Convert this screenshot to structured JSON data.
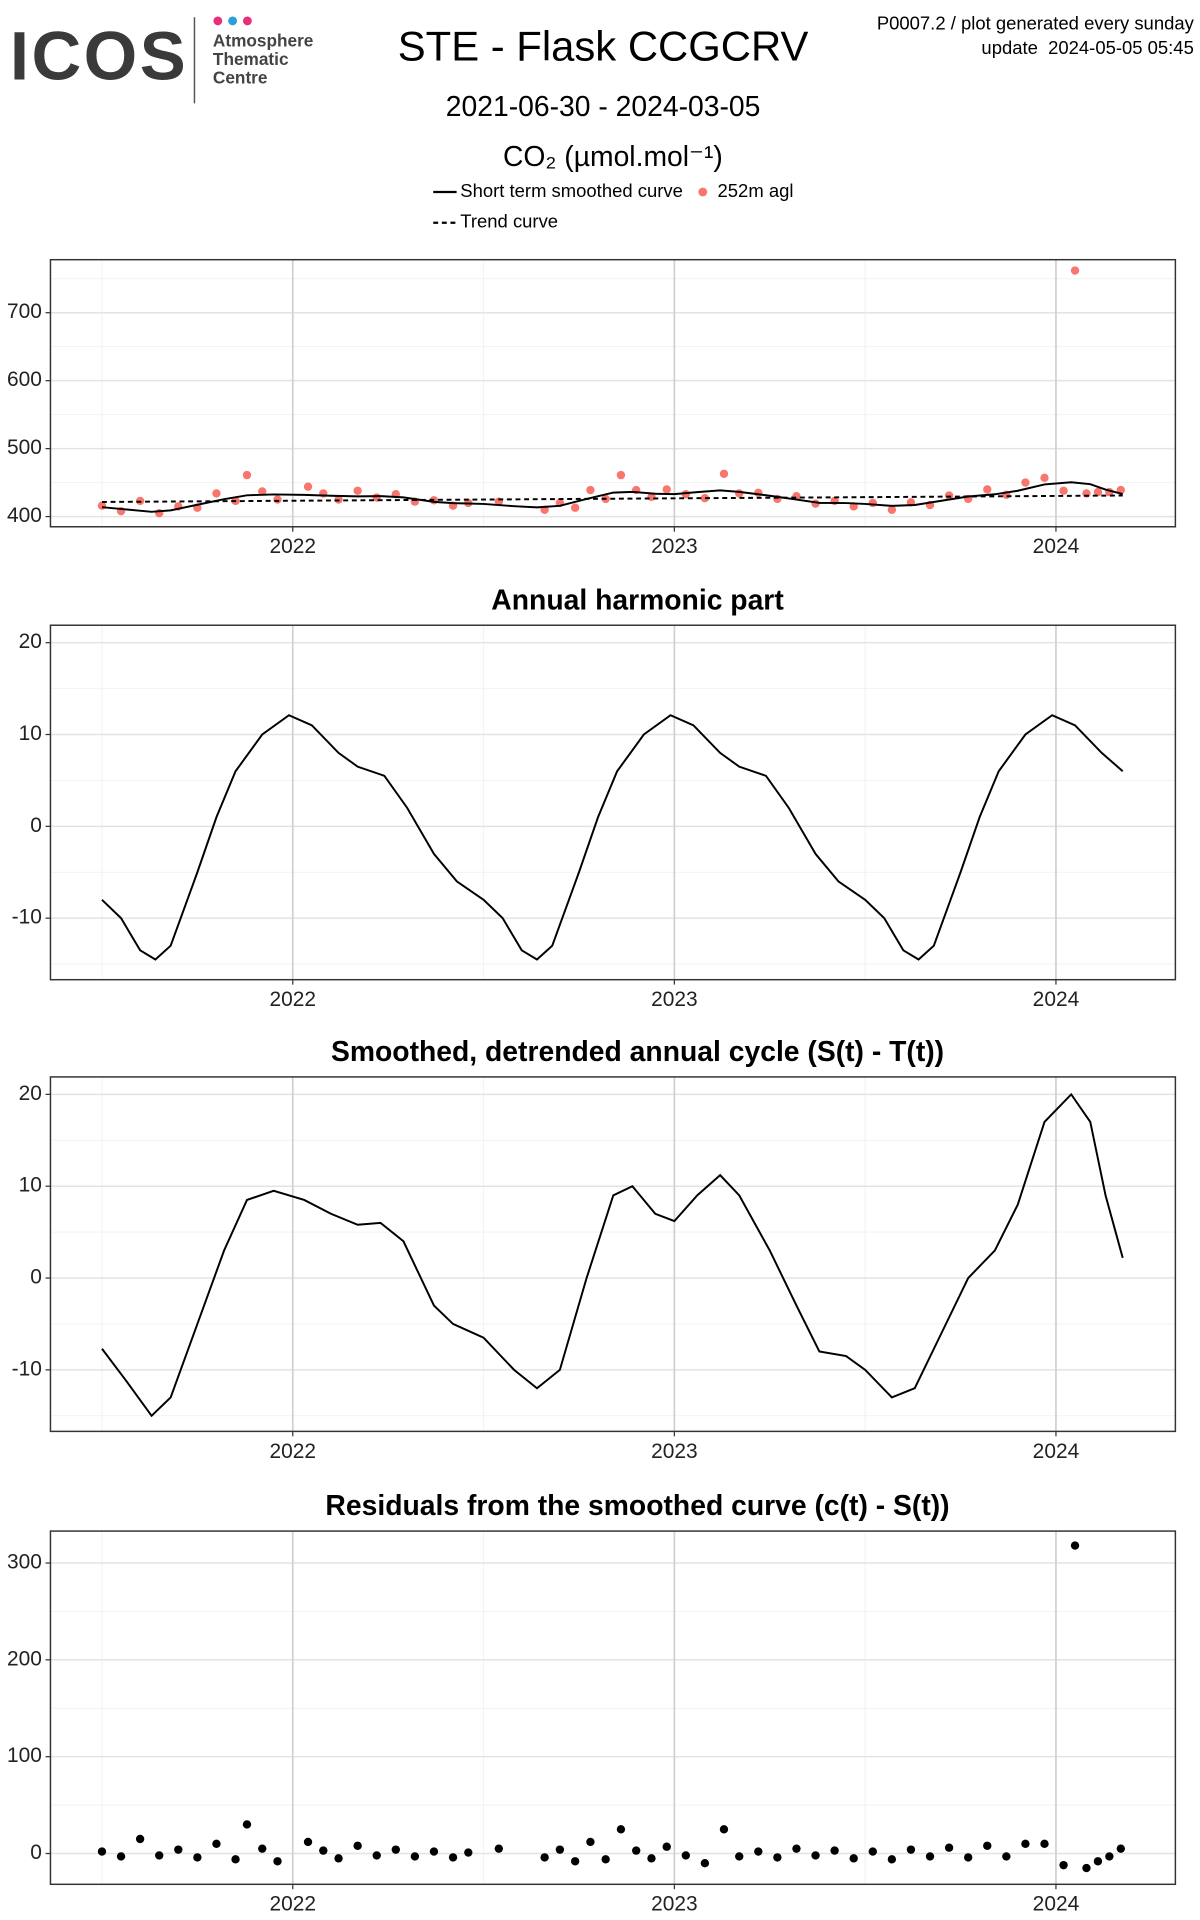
{
  "header": {
    "logo": "ICOS",
    "logo_text": [
      "Atmosphere",
      "Thematic",
      "Centre"
    ],
    "info": [
      "P0007.2 / plot generated every sunday",
      "update  2024-05-05 05:45"
    ]
  },
  "chart_data": [
    {
      "type": "line",
      "title": "STE - Flask CCGCRV",
      "subtitle": "2021-06-30 - 2024-03-05",
      "y_label": "CO₂ (µmol.mol⁻¹)",
      "xlim": [
        2021.365,
        2024.313
      ],
      "xticks": [
        2022,
        2023,
        2024
      ],
      "xminor": [
        2021.5,
        2022.5,
        2023.5
      ],
      "ylim": [
        385,
        778
      ],
      "yticks": [
        400,
        500,
        600,
        700
      ],
      "yminor": [
        450,
        550,
        650,
        750
      ],
      "grid": true,
      "series": [
        {
          "name": "Short term smoothed curve",
          "color": "#000000",
          "style": "solid",
          "x": [
            2021.5,
            2021.56,
            2021.63,
            2021.68,
            2021.75,
            2021.82,
            2021.88,
            2021.95,
            2022.03,
            2022.1,
            2022.17,
            2022.23,
            2022.29,
            2022.37,
            2022.42,
            2022.5,
            2022.58,
            2022.64,
            2022.7,
            2022.77,
            2022.84,
            2022.89,
            2022.95,
            2023.0,
            2023.06,
            2023.12,
            2023.17,
            2023.25,
            2023.32,
            2023.38,
            2023.45,
            2023.5,
            2023.57,
            2023.63,
            2023.7,
            2023.77,
            2023.84,
            2023.9,
            2023.97,
            2024.04,
            2024.09,
            2024.13,
            2024.175
          ],
          "values": [
            413.8,
            410.7,
            407,
            409.1,
            417.4,
            425.6,
            431.3,
            432.6,
            431.9,
            430.6,
            429.7,
            430.1,
            428.3,
            421.6,
            419.8,
            418.6,
            415.3,
            413.5,
            415.8,
            426,
            435.3,
            436.4,
            433.6,
            433,
            436,
            438.5,
            436.4,
            430.7,
            425,
            420.2,
            419.9,
            418.6,
            415.8,
            417,
            423.3,
            429.5,
            432.8,
            438,
            447.3,
            450.5,
            447.7,
            439.8,
            433.2
          ]
        },
        {
          "name": "252m agl",
          "color": "#f8766d",
          "mode": "markers",
          "x": [
            2021.5,
            2021.55,
            2021.6,
            2021.65,
            2021.7,
            2021.75,
            2021.8,
            2021.85,
            2021.88,
            2021.92,
            2021.96,
            2022.04,
            2022.08,
            2022.12,
            2022.17,
            2022.22,
            2022.27,
            2022.32,
            2022.37,
            2022.42,
            2022.46,
            2022.54,
            2022.66,
            2022.7,
            2022.74,
            2022.78,
            2022.82,
            2022.86,
            2022.9,
            2022.94,
            2022.98,
            2023.03,
            2023.08,
            2023.13,
            2023.17,
            2023.22,
            2023.27,
            2023.32,
            2023.37,
            2023.42,
            2023.47,
            2023.52,
            2023.57,
            2023.62,
            2023.67,
            2023.72,
            2023.77,
            2023.82,
            2023.87,
            2023.92,
            2023.97,
            2024.02,
            2024.05,
            2024.08,
            2024.11,
            2024.14,
            2024.17
          ],
          "values": [
            416,
            408,
            423,
            405,
            415,
            413,
            434,
            423,
            461,
            437,
            425,
            444,
            434,
            425,
            438,
            428,
            433,
            422,
            424,
            416,
            420,
            422,
            410,
            420,
            413,
            439,
            426,
            461,
            439,
            429,
            440,
            433,
            427,
            463,
            434,
            435,
            426,
            430,
            419,
            423,
            415,
            420,
            410,
            421,
            417,
            431,
            426,
            440,
            432,
            450,
            457,
            438,
            762,
            434,
            436,
            436,
            439
          ]
        },
        {
          "name": "Trend curve",
          "color": "#000000",
          "style": "dashed",
          "x": [
            2021.5,
            2022.17,
            2022.84,
            2023.51,
            2024.175
          ],
          "values": [
            421.5,
            423.9,
            426.3,
            428.6,
            431
          ]
        }
      ]
    },
    {
      "type": "line",
      "title": "Annual harmonic part",
      "xlim": [
        2021.365,
        2024.313
      ],
      "xticks": [
        2022,
        2023,
        2024
      ],
      "xminor": [
        2021.5,
        2022.5,
        2023.5
      ],
      "ylim": [
        -16.7,
        21.9
      ],
      "yticks": [
        -10,
        0,
        10,
        20
      ],
      "yminor": [
        -15,
        -5,
        5,
        15
      ],
      "grid": true,
      "series": [
        {
          "color": "#000000",
          "style": "solid",
          "x": [
            2021.5,
            2021.55,
            2021.6,
            2021.64,
            2021.68,
            2021.75,
            2021.8,
            2021.85,
            2021.92,
            2021.99,
            2022.05,
            2022.12,
            2022.17,
            2022.24,
            2022.3,
            2022.37,
            2022.43,
            2022.5,
            2022.55,
            2022.6,
            2022.64,
            2022.68,
            2022.75,
            2022.8,
            2022.85,
            2022.92,
            2022.99,
            2023.05,
            2023.12,
            2023.17,
            2023.24,
            2023.3,
            2023.37,
            2023.43,
            2023.5,
            2023.55,
            2023.6,
            2023.64,
            2023.68,
            2023.75,
            2023.8,
            2023.85,
            2023.92,
            2023.99,
            2024.05,
            2024.12,
            2024.175
          ],
          "values": [
            -8,
            -10,
            -13.5,
            -14.5,
            -13,
            -5,
            1,
            6,
            10,
            12.1,
            11,
            8,
            6.5,
            5.5,
            2,
            -3,
            -6,
            -8,
            -10,
            -13.5,
            -14.5,
            -13,
            -5,
            1,
            6,
            10,
            12.1,
            11,
            8,
            6.5,
            5.5,
            2,
            -3,
            -6,
            -8,
            -10,
            -13.5,
            -14.5,
            -13,
            -5,
            1,
            6,
            10,
            12.1,
            11,
            8,
            6
          ]
        }
      ]
    },
    {
      "type": "line",
      "title": "Smoothed, detrended annual cycle (S(t) - T(t))",
      "xlim": [
        2021.365,
        2024.313
      ],
      "xticks": [
        2022,
        2023,
        2024
      ],
      "xminor": [
        2021.5,
        2022.5,
        2023.5
      ],
      "ylim": [
        -16.7,
        21.9
      ],
      "yticks": [
        -10,
        0,
        10,
        20
      ],
      "yminor": [
        -15,
        -5,
        5,
        15
      ],
      "grid": true,
      "series": [
        {
          "color": "#000000",
          "style": "solid",
          "x": [
            2021.5,
            2021.56,
            2021.63,
            2021.68,
            2021.75,
            2021.82,
            2021.88,
            2021.95,
            2022.03,
            2022.1,
            2022.17,
            2022.23,
            2022.29,
            2022.37,
            2022.42,
            2022.5,
            2022.58,
            2022.64,
            2022.7,
            2022.77,
            2022.84,
            2022.89,
            2022.95,
            2023.0,
            2023.06,
            2023.12,
            2023.17,
            2023.25,
            2023.32,
            2023.38,
            2023.45,
            2023.5,
            2023.57,
            2023.63,
            2023.7,
            2023.77,
            2023.84,
            2023.9,
            2023.97,
            2024.04,
            2024.09,
            2024.13,
            2024.175
          ],
          "values": [
            -7.7,
            -11,
            -15,
            -13,
            -5,
            3,
            8.5,
            9.5,
            8.5,
            7,
            5.8,
            6,
            4,
            -3,
            -5,
            -6.5,
            -10,
            -12,
            -10,
            0,
            9,
            10,
            7,
            6.2,
            9,
            11.2,
            9,
            3,
            -3,
            -8,
            -8.5,
            -10,
            -13,
            -12,
            -6,
            0,
            3,
            8,
            17,
            20,
            17,
            9,
            2.2
          ]
        }
      ]
    },
    {
      "type": "scatter",
      "title": "Residuals from the smoothed curve (c(t) - S(t))",
      "xlim": [
        2021.365,
        2024.313
      ],
      "xticks": [
        2022,
        2023,
        2024
      ],
      "xminor": [
        2021.5,
        2022.5,
        2023.5
      ],
      "ylim": [
        -31.8,
        333
      ],
      "yticks": [
        0,
        100,
        200,
        300
      ],
      "yminor": [
        50,
        150,
        250
      ],
      "grid": true,
      "series": [
        {
          "color": "#000000",
          "mode": "markers",
          "x": [
            2021.5,
            2021.55,
            2021.6,
            2021.65,
            2021.7,
            2021.75,
            2021.8,
            2021.85,
            2021.88,
            2021.92,
            2021.96,
            2022.04,
            2022.08,
            2022.12,
            2022.17,
            2022.22,
            2022.27,
            2022.32,
            2022.37,
            2022.42,
            2022.46,
            2022.54,
            2022.66,
            2022.7,
            2022.74,
            2022.78,
            2022.82,
            2022.86,
            2022.9,
            2022.94,
            2022.98,
            2023.03,
            2023.08,
            2023.13,
            2023.17,
            2023.22,
            2023.27,
            2023.32,
            2023.37,
            2023.42,
            2023.47,
            2023.52,
            2023.57,
            2023.62,
            2023.67,
            2023.72,
            2023.77,
            2023.82,
            2023.87,
            2023.92,
            2023.97,
            2024.02,
            2024.05,
            2024.08,
            2024.11,
            2024.14,
            2024.17
          ],
          "values": [
            2,
            -3,
            15,
            -2,
            4,
            -4,
            10,
            -6,
            30,
            5,
            -8,
            12,
            3,
            -5,
            8,
            -2,
            4,
            -3,
            2,
            -4,
            1,
            5,
            -4,
            4,
            -8,
            12,
            -6,
            25,
            3,
            -5,
            7,
            -2,
            -10,
            25,
            -3,
            2,
            -4,
            5,
            -2,
            3,
            -5,
            2,
            -6,
            4,
            -3,
            6,
            -4,
            8,
            -3,
            10,
            10,
            -12,
            318,
            -15,
            -8,
            -3,
            5
          ]
        }
      ]
    }
  ]
}
